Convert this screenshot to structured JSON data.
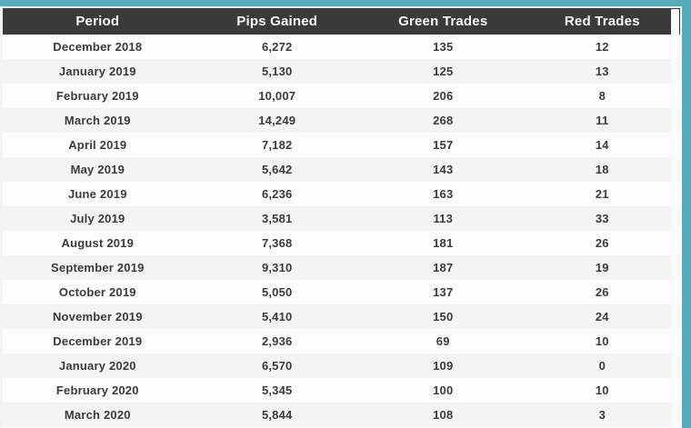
{
  "theme": {
    "accent_color": "#55acba",
    "header_bg_color": "#3a3a3a",
    "header_text_color": "#f8f8f8",
    "row_white_color": "#fcfcfc",
    "row_gray_color": "#f4f4f4",
    "cell_text_color": "#3b3b3b"
  },
  "table": {
    "columns": [
      "Period",
      "Pips Gained",
      "Green Trades",
      "Red Trades"
    ],
    "rows": [
      [
        "December 2018",
        "6,272",
        "135",
        "12"
      ],
      [
        "January 2019",
        "5,130",
        "125",
        "13"
      ],
      [
        "February 2019",
        "10,007",
        "206",
        "8"
      ],
      [
        "March 2019",
        "14,249",
        "268",
        "11"
      ],
      [
        "April 2019",
        "7,182",
        "157",
        "14"
      ],
      [
        "May 2019",
        "5,642",
        "143",
        "18"
      ],
      [
        "June 2019",
        "6,236",
        "163",
        "21"
      ],
      [
        "July 2019",
        "3,581",
        "113",
        "33"
      ],
      [
        "August 2019",
        "7,368",
        "181",
        "26"
      ],
      [
        "September 2019",
        "9,310",
        "187",
        "19"
      ],
      [
        "October 2019",
        "5,050",
        "137",
        "26"
      ],
      [
        "November 2019",
        "5,410",
        "150",
        "24"
      ],
      [
        "December 2019",
        "2,936",
        "69",
        "10"
      ],
      [
        "January 2020",
        "6,570",
        "109",
        "0"
      ],
      [
        "February 2020",
        "5,345",
        "100",
        "10"
      ],
      [
        "March 2020",
        "5,844",
        "108",
        "3"
      ]
    ]
  }
}
